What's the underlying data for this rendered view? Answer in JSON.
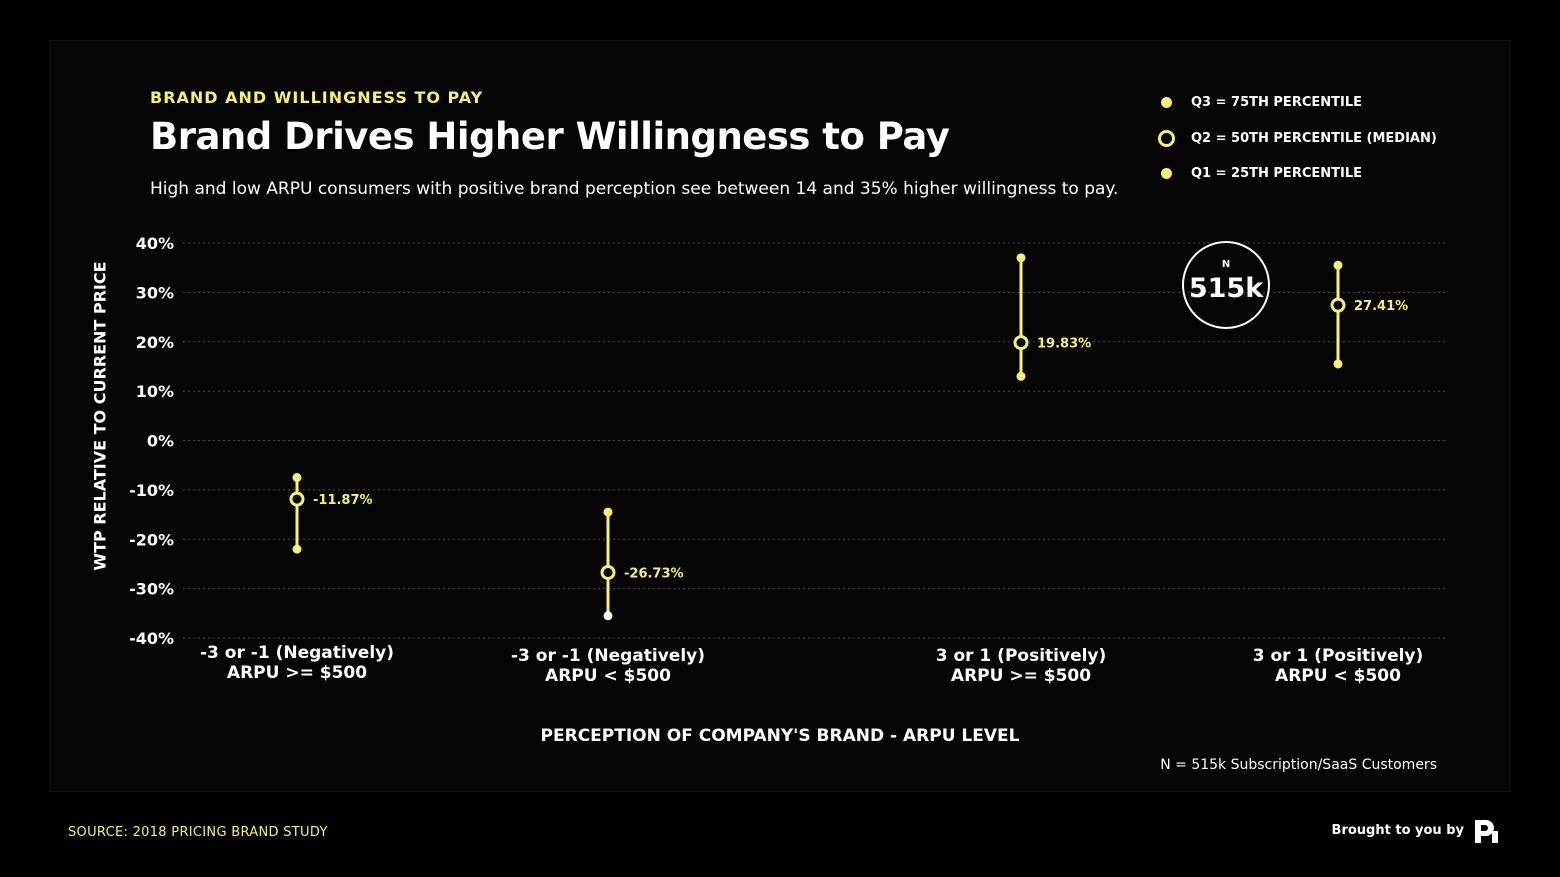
{
  "eyebrow": "BRAND AND WILLINGNESS TO PAY",
  "title": "Brand Drives Higher Willingness to Pay",
  "subtitle": "High and low ARPU consumers with positive brand perception see between 14 and 35% higher willingness to pay.",
  "legend": {
    "q3": "Q3 = 75TH PERCENTILE",
    "q2": "Q2 = 50TH PERCENTILE (MEDIAN)",
    "q1": "Q1 = 25TH PERCENTILE"
  },
  "badge": {
    "label": "N",
    "value": "515k"
  },
  "note": "N = 515k Subscription/SaaS Customers",
  "source": "SOURCE: 2018 PRICING BRAND STUDY",
  "brought_by": "Brought to you by",
  "colors": {
    "accent": "#f6f07a",
    "background": "#000000",
    "text": "#ffffff",
    "grid": "#4a4a4a"
  },
  "chart_data": {
    "type": "range-dot",
    "xlabel": "PERCEPTION OF COMPANY'S BRAND - ARPU LEVEL",
    "ylabel": "WTP RELATIVE TO CURRENT PRICE",
    "ylim": [
      -40,
      40
    ],
    "yticks": [
      40,
      30,
      20,
      10,
      0,
      -10,
      -20,
      -30,
      -40
    ],
    "ytick_labels": [
      "40%",
      "30%",
      "20%",
      "10%",
      "0%",
      "-10%",
      "-20%",
      "-30%",
      "-40%"
    ],
    "grid": true,
    "legend_position": "top-right",
    "categories": [
      {
        "line1": "-3 or -1 (Negatively)",
        "line2": "ARPU >= $500",
        "q1": -22,
        "q2": -11.87,
        "q3": -7.5,
        "label": "-11.87%"
      },
      {
        "line1": "-3 or -1 (Negatively)",
        "line2": "ARPU < $500",
        "q1": -35.5,
        "q2": -26.73,
        "q3": -14.5,
        "label": "-26.73%"
      },
      {
        "line1": "3 or 1 (Positively)",
        "line2": "ARPU >= $500",
        "q1": 13,
        "q2": 19.83,
        "q3": 37,
        "label": "19.83%"
      },
      {
        "line1": "3 or 1 (Positively)",
        "line2": "ARPU < $500",
        "q1": 15.5,
        "q2": 27.41,
        "q3": 35.5,
        "label": "27.41%"
      }
    ]
  }
}
